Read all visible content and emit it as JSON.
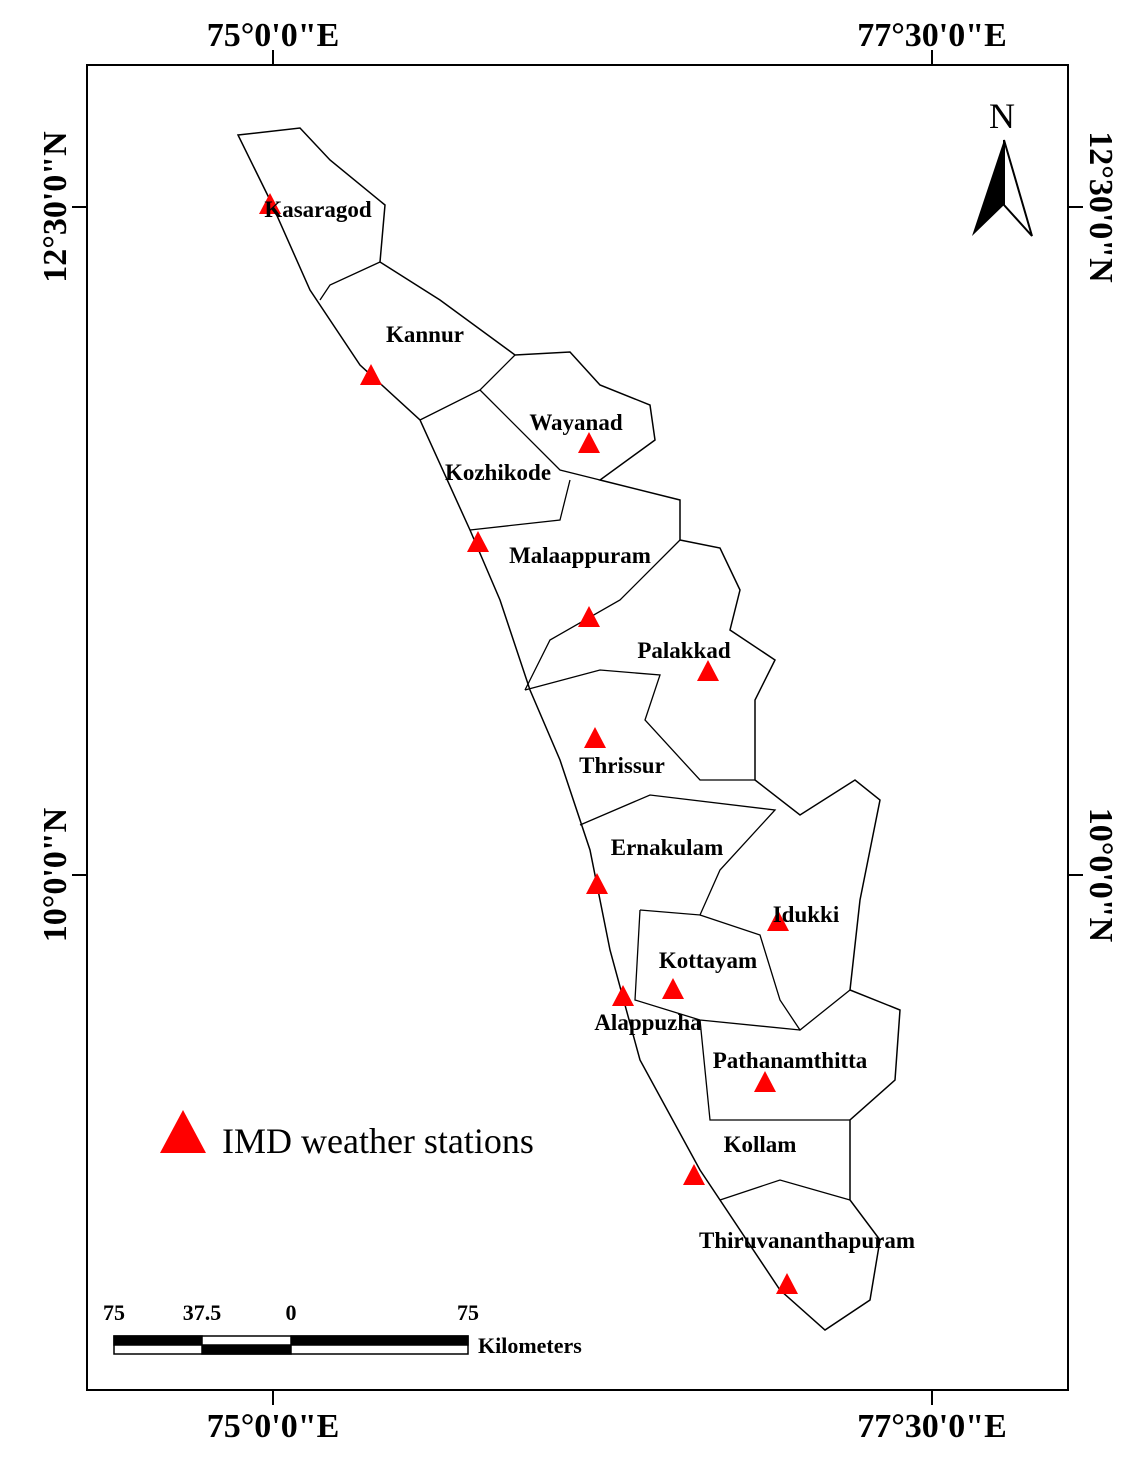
{
  "graticule": {
    "top": [
      "75°0'0\"E",
      "77°30'0\"E"
    ],
    "bottom": [
      "75°0'0\"E",
      "77°30'0\"E"
    ],
    "left": [
      "12°30'0\"N",
      "10°0'0\"N"
    ],
    "right": [
      "12°30'0\"N",
      "10°0'0\"N"
    ]
  },
  "north": "N",
  "districts": [
    "Kasaragod",
    "Kannur",
    "Wayanad",
    "Kozhikode",
    "Malaappuram",
    "Palakkad",
    "Thrissur",
    "Ernakulam",
    "Idukki",
    "Kottayam",
    "Alappuzha",
    "Pathanamthitta",
    "Kollam",
    "Thiruvananthapuram"
  ],
  "legend": "IMD weather stations",
  "scale": {
    "labels": [
      75,
      37.5,
      0,
      75
    ],
    "unit": "Kilometers"
  }
}
